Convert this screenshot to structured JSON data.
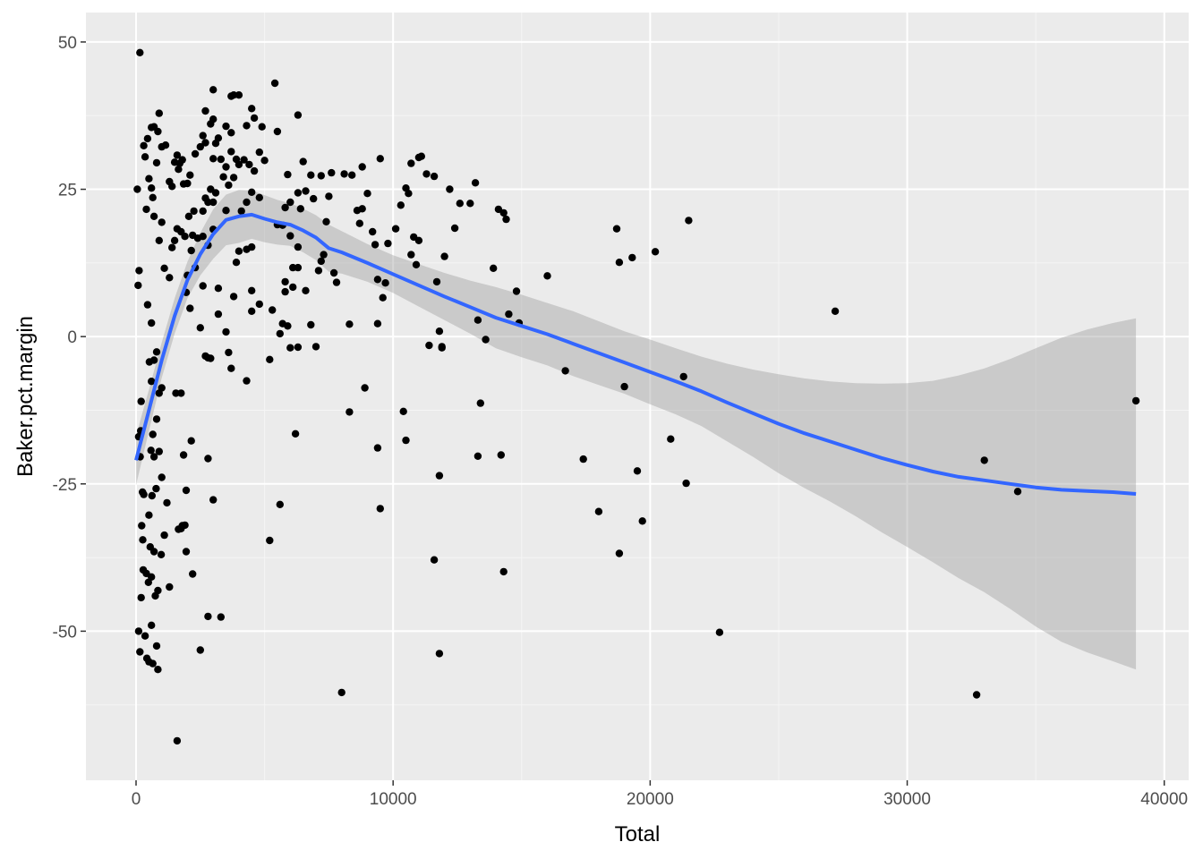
{
  "chart_data": {
    "type": "scatter",
    "xlabel": "Total",
    "ylabel": "Baker.pct.margin",
    "xlim": [
      -1950,
      40950
    ],
    "ylim": [
      -75.3,
      55.0
    ],
    "x_ticks": [
      0,
      10000,
      20000,
      30000,
      40000
    ],
    "x_tick_labels": [
      "0",
      "10000",
      "20000",
      "30000",
      "40000"
    ],
    "y_ticks": [
      -50,
      -25,
      0,
      25,
      50
    ],
    "y_tick_labels": [
      "-50",
      "-25",
      "0",
      "25",
      "50"
    ],
    "grid": true,
    "legend": "none",
    "colors": {
      "panel": "#ebebeb",
      "grid_major": "#ffffff",
      "grid_minor": "#f5f5f5",
      "points": "#000000",
      "smooth_line": "#3366ff",
      "ribbon": "#999999"
    },
    "points": [
      [
        150,
        48.2
      ],
      [
        50,
        25.0
      ],
      [
        80,
        8.7
      ],
      [
        120,
        11.2
      ],
      [
        200,
        -11.0
      ],
      [
        180,
        -16.0
      ],
      [
        100,
        -17.0
      ],
      [
        160,
        -20.4
      ],
      [
        250,
        -26.4
      ],
      [
        300,
        -26.8
      ],
      [
        220,
        -32.1
      ],
      [
        260,
        -34.5
      ],
      [
        280,
        -39.6
      ],
      [
        200,
        -44.3
      ],
      [
        100,
        -50.0
      ],
      [
        150,
        -53.5
      ],
      [
        350,
        -50.8
      ],
      [
        420,
        -54.6
      ],
      [
        500,
        -55.2
      ],
      [
        650,
        -55.5
      ],
      [
        850,
        -56.5
      ],
      [
        800,
        -52.5
      ],
      [
        600,
        -49.0
      ],
      [
        400,
        -40.2
      ],
      [
        480,
        -41.7
      ],
      [
        600,
        -40.8
      ],
      [
        750,
        -44.0
      ],
      [
        850,
        -43.1
      ],
      [
        550,
        -35.7
      ],
      [
        700,
        -36.5
      ],
      [
        500,
        -30.3
      ],
      [
        620,
        -27.0
      ],
      [
        780,
        -25.8
      ],
      [
        900,
        -19.5
      ],
      [
        1000,
        -23.9
      ],
      [
        1200,
        -28.2
      ],
      [
        1100,
        -33.7
      ],
      [
        980,
        -37.0
      ],
      [
        1300,
        -42.5
      ],
      [
        580,
        -19.3
      ],
      [
        700,
        -20.4
      ],
      [
        650,
        -16.6
      ],
      [
        800,
        -14.0
      ],
      [
        900,
        -9.6
      ],
      [
        1000,
        -8.7
      ],
      [
        600,
        -7.6
      ],
      [
        520,
        -4.3
      ],
      [
        700,
        -4.0
      ],
      [
        800,
        -2.6
      ],
      [
        600,
        2.3
      ],
      [
        450,
        5.4
      ],
      [
        1100,
        11.6
      ],
      [
        1300,
        10.0
      ],
      [
        900,
        16.3
      ],
      [
        1000,
        19.4
      ],
      [
        700,
        20.4
      ],
      [
        600,
        25.2
      ],
      [
        500,
        26.8
      ],
      [
        650,
        23.6
      ],
      [
        400,
        21.6
      ],
      [
        800,
        29.5
      ],
      [
        350,
        30.5
      ],
      [
        300,
        32.4
      ],
      [
        450,
        33.6
      ],
      [
        600,
        35.5
      ],
      [
        700,
        35.6
      ],
      [
        850,
        34.8
      ],
      [
        900,
        37.9
      ],
      [
        1000,
        32.2
      ],
      [
        1150,
        32.5
      ],
      [
        1300,
        26.3
      ],
      [
        1400,
        25.5
      ],
      [
        1500,
        29.6
      ],
      [
        1600,
        30.8
      ],
      [
        1700,
        29.4
      ],
      [
        1800,
        30.0
      ],
      [
        1650,
        28.4
      ],
      [
        1850,
        25.9
      ],
      [
        2000,
        26.0
      ],
      [
        2100,
        27.4
      ],
      [
        2250,
        21.3
      ],
      [
        2050,
        20.4
      ],
      [
        1900,
        17.0
      ],
      [
        1750,
        17.8
      ],
      [
        1600,
        18.3
      ],
      [
        1500,
        16.3
      ],
      [
        1400,
        15.1
      ],
      [
        2200,
        17.2
      ],
      [
        2400,
        16.7
      ],
      [
        2600,
        17.0
      ],
      [
        2800,
        15.5
      ],
      [
        3000,
        18.2
      ],
      [
        2150,
        14.6
      ],
      [
        2000,
        10.4
      ],
      [
        2300,
        11.7
      ],
      [
        2600,
        8.6
      ],
      [
        1950,
        7.5
      ],
      [
        2100,
        4.8
      ],
      [
        2500,
        1.5
      ],
      [
        2700,
        -3.3
      ],
      [
        2800,
        -3.6
      ],
      [
        2900,
        -3.7
      ],
      [
        3200,
        3.8
      ],
      [
        3500,
        0.8
      ],
      [
        3600,
        -2.7
      ],
      [
        3700,
        -5.4
      ],
      [
        4300,
        -7.5
      ],
      [
        2800,
        -20.7
      ],
      [
        3000,
        -27.7
      ],
      [
        3300,
        -47.6
      ],
      [
        2800,
        -47.5
      ],
      [
        2500,
        -53.2
      ],
      [
        1600,
        -68.6
      ],
      [
        1750,
        -32.6
      ],
      [
        1650,
        -32.7
      ],
      [
        1950,
        -36.5
      ],
      [
        2200,
        -40.3
      ],
      [
        1950,
        -26.1
      ],
      [
        1850,
        -20.1
      ],
      [
        2150,
        -17.7
      ],
      [
        1750,
        -9.6
      ],
      [
        1550,
        -9.6
      ],
      [
        1800,
        -32.1
      ],
      [
        1900,
        -32.0
      ],
      [
        2700,
        38.3
      ],
      [
        3000,
        41.9
      ],
      [
        2900,
        36.1
      ],
      [
        3100,
        32.8
      ],
      [
        3200,
        33.7
      ],
      [
        3300,
        30.1
      ],
      [
        3500,
        28.8
      ],
      [
        3700,
        31.4
      ],
      [
        3900,
        30.1
      ],
      [
        4000,
        29.2
      ],
      [
        4200,
        30.0
      ],
      [
        4400,
        29.2
      ],
      [
        4600,
        28.1
      ],
      [
        4800,
        31.3
      ],
      [
        5000,
        29.9
      ],
      [
        3800,
        27.0
      ],
      [
        3400,
        27.1
      ],
      [
        3600,
        25.7
      ],
      [
        2900,
        25.0
      ],
      [
        3100,
        24.4
      ],
      [
        3000,
        22.8
      ],
      [
        2700,
        23.5
      ],
      [
        2800,
        22.8
      ],
      [
        2600,
        21.3
      ],
      [
        3500,
        21.4
      ],
      [
        4100,
        21.3
      ],
      [
        4300,
        22.8
      ],
      [
        4500,
        24.5
      ],
      [
        4800,
        23.6
      ],
      [
        3000,
        36.9
      ],
      [
        2600,
        34.1
      ],
      [
        2300,
        31.0
      ],
      [
        2500,
        32.2
      ],
      [
        2700,
        32.9
      ],
      [
        3000,
        30.2
      ],
      [
        3800,
        41.0
      ],
      [
        4000,
        41.0
      ],
      [
        3700,
        40.8
      ],
      [
        4500,
        38.7
      ],
      [
        4600,
        37.1
      ],
      [
        4900,
        35.6
      ],
      [
        5400,
        43.0
      ],
      [
        3500,
        35.7
      ],
      [
        3700,
        34.6
      ],
      [
        4300,
        35.8
      ],
      [
        4300,
        14.8
      ],
      [
        4500,
        15.2
      ],
      [
        4000,
        14.5
      ],
      [
        3900,
        12.6
      ],
      [
        3200,
        8.2
      ],
      [
        3800,
        6.8
      ],
      [
        4500,
        4.3
      ],
      [
        4500,
        7.8
      ],
      [
        4800,
        5.5
      ],
      [
        5300,
        4.5
      ],
      [
        5200,
        -3.9
      ],
      [
        5600,
        0.5
      ],
      [
        5700,
        2.2
      ],
      [
        5900,
        1.8
      ],
      [
        6300,
        -1.8
      ],
      [
        6000,
        -1.9
      ],
      [
        6800,
        2.0
      ],
      [
        7000,
        -1.7
      ],
      [
        6200,
        -16.5
      ],
      [
        5600,
        -28.5
      ],
      [
        5200,
        -34.6
      ],
      [
        5500,
        34.8
      ],
      [
        5900,
        27.5
      ],
      [
        6300,
        37.6
      ],
      [
        6500,
        29.7
      ],
      [
        6800,
        27.4
      ],
      [
        7200,
        27.3
      ],
      [
        7600,
        27.8
      ],
      [
        6300,
        24.4
      ],
      [
        6600,
        24.7
      ],
      [
        6900,
        23.4
      ],
      [
        6000,
        22.8
      ],
      [
        5800,
        21.9
      ],
      [
        6400,
        21.7
      ],
      [
        5500,
        19.0
      ],
      [
        5700,
        18.9
      ],
      [
        6000,
        17.1
      ],
      [
        6300,
        15.2
      ],
      [
        5800,
        9.3
      ],
      [
        6100,
        8.4
      ],
      [
        5800,
        7.6
      ],
      [
        6100,
        11.7
      ],
      [
        6300,
        11.7
      ],
      [
        6600,
        7.8
      ],
      [
        7100,
        11.2
      ],
      [
        7200,
        12.8
      ],
      [
        7300,
        13.9
      ],
      [
        7400,
        19.5
      ],
      [
        7500,
        23.8
      ],
      [
        7700,
        10.8
      ],
      [
        7800,
        9.2
      ],
      [
        8100,
        27.6
      ],
      [
        8400,
        27.4
      ],
      [
        8600,
        21.4
      ],
      [
        8800,
        21.7
      ],
      [
        8700,
        19.2
      ],
      [
        8800,
        28.8
      ],
      [
        9000,
        24.3
      ],
      [
        9200,
        17.8
      ],
      [
        9300,
        15.6
      ],
      [
        9400,
        9.7
      ],
      [
        9500,
        30.2
      ],
      [
        9700,
        9.1
      ],
      [
        9800,
        15.8
      ],
      [
        10100,
        18.3
      ],
      [
        10300,
        22.3
      ],
      [
        10500,
        25.2
      ],
      [
        10600,
        24.3
      ],
      [
        10700,
        13.9
      ],
      [
        10800,
        16.9
      ],
      [
        11000,
        16.3
      ],
      [
        10900,
        12.2
      ],
      [
        10700,
        29.4
      ],
      [
        11000,
        30.4
      ],
      [
        11100,
        30.6
      ],
      [
        11300,
        27.6
      ],
      [
        11600,
        27.2
      ],
      [
        11700,
        9.3
      ],
      [
        11800,
        0.9
      ],
      [
        11900,
        -1.7
      ],
      [
        12200,
        25.0
      ],
      [
        12400,
        18.4
      ],
      [
        12600,
        22.6
      ],
      [
        12000,
        13.6
      ],
      [
        11400,
        -1.5
      ],
      [
        11900,
        -1.9
      ],
      [
        13000,
        22.6
      ],
      [
        13200,
        26.1
      ],
      [
        13300,
        2.8
      ],
      [
        13600,
        -0.5
      ],
      [
        13900,
        11.6
      ],
      [
        14100,
        21.6
      ],
      [
        14300,
        21.0
      ],
      [
        14400,
        19.9
      ],
      [
        14500,
        3.8
      ],
      [
        14800,
        7.7
      ],
      [
        14900,
        2.3
      ],
      [
        16000,
        10.3
      ],
      [
        13400,
        -11.3
      ],
      [
        13300,
        -20.3
      ],
      [
        10400,
        -12.7
      ],
      [
        10500,
        -17.6
      ],
      [
        9500,
        -29.2
      ],
      [
        9400,
        -18.9
      ],
      [
        8900,
        -8.7
      ],
      [
        8300,
        -12.8
      ],
      [
        8300,
        2.1
      ],
      [
        9400,
        2.2
      ],
      [
        9600,
        6.6
      ],
      [
        8000,
        -60.4
      ],
      [
        11600,
        -37.9
      ],
      [
        11800,
        -23.6
      ],
      [
        11800,
        -53.8
      ],
      [
        14200,
        -20.1
      ],
      [
        14300,
        -39.9
      ],
      [
        16700,
        -5.8
      ],
      [
        17400,
        -20.8
      ],
      [
        18000,
        -29.7
      ],
      [
        18700,
        18.3
      ],
      [
        18800,
        12.6
      ],
      [
        19000,
        -8.5
      ],
      [
        19300,
        13.4
      ],
      [
        19500,
        -22.8
      ],
      [
        19700,
        -31.3
      ],
      [
        18800,
        -36.8
      ],
      [
        20200,
        14.4
      ],
      [
        20800,
        -17.4
      ],
      [
        21300,
        -6.8
      ],
      [
        21500,
        19.7
      ],
      [
        21400,
        -24.9
      ],
      [
        22700,
        -50.2
      ],
      [
        27200,
        4.3
      ],
      [
        32700,
        -60.8
      ],
      [
        33000,
        -21.0
      ],
      [
        34300,
        -26.3
      ],
      [
        38900,
        -10.9
      ]
    ],
    "smooth": {
      "method": "loess",
      "x": [
        0,
        500,
        1000,
        1500,
        2000,
        2500,
        3000,
        3500,
        4000,
        4500,
        5000,
        5500,
        6000,
        6500,
        7000,
        7500,
        8000,
        9000,
        10000,
        11000,
        12000,
        13000,
        14000,
        15000,
        16000,
        17000,
        18000,
        19000,
        20000,
        21000,
        22000,
        23000,
        24000,
        25000,
        26000,
        27000,
        28000,
        29000,
        30000,
        31000,
        32000,
        33000,
        34000,
        35000,
        36000,
        37000,
        38000,
        38900
      ],
      "y": [
        -21.0,
        -12.5,
        -4.0,
        3.5,
        9.6,
        14.0,
        17.4,
        19.8,
        20.4,
        20.7,
        20.0,
        19.4,
        19.0,
        18.0,
        16.8,
        15.0,
        14.3,
        12.5,
        10.6,
        8.7,
        6.8,
        5.0,
        3.2,
        1.8,
        0.4,
        -1.2,
        -2.8,
        -4.4,
        -6.0,
        -7.6,
        -9.3,
        -11.2,
        -13.0,
        -14.8,
        -16.4,
        -17.8,
        -19.2,
        -20.6,
        -21.8,
        -22.9,
        -23.8,
        -24.4,
        -25.0,
        -25.6,
        -26.0,
        -26.2,
        -26.4,
        -26.7
      ],
      "ci_upper": [
        -16.8,
        -9.0,
        -1.0,
        6.5,
        12.7,
        17.6,
        21.6,
        24.1,
        24.9,
        24.8,
        24.0,
        23.2,
        22.6,
        21.7,
        20.6,
        19.0,
        17.9,
        15.7,
        13.8,
        12.3,
        10.8,
        9.5,
        8.4,
        7.1,
        5.7,
        4.3,
        2.6,
        0.9,
        -0.5,
        -2.0,
        -3.4,
        -4.6,
        -5.6,
        -6.4,
        -7.1,
        -7.6,
        -7.9,
        -8.0,
        -7.9,
        -7.5,
        -6.6,
        -5.4,
        -3.8,
        -2.0,
        -0.2,
        1.2,
        2.3,
        3.1
      ],
      "ci_lower": [
        -25.2,
        -16.0,
        -7.0,
        0.5,
        6.5,
        10.4,
        13.2,
        15.5,
        15.9,
        16.6,
        16.0,
        15.6,
        15.4,
        14.3,
        13.0,
        11.0,
        10.7,
        9.3,
        7.4,
        5.1,
        2.8,
        0.5,
        -2.0,
        -3.5,
        -4.9,
        -6.7,
        -8.2,
        -9.7,
        -11.5,
        -13.2,
        -15.2,
        -17.8,
        -20.4,
        -23.2,
        -25.7,
        -28.0,
        -30.5,
        -33.2,
        -35.7,
        -38.3,
        -41.0,
        -43.4,
        -46.2,
        -49.2,
        -51.8,
        -53.6,
        -55.1,
        -56.5
      ]
    }
  }
}
